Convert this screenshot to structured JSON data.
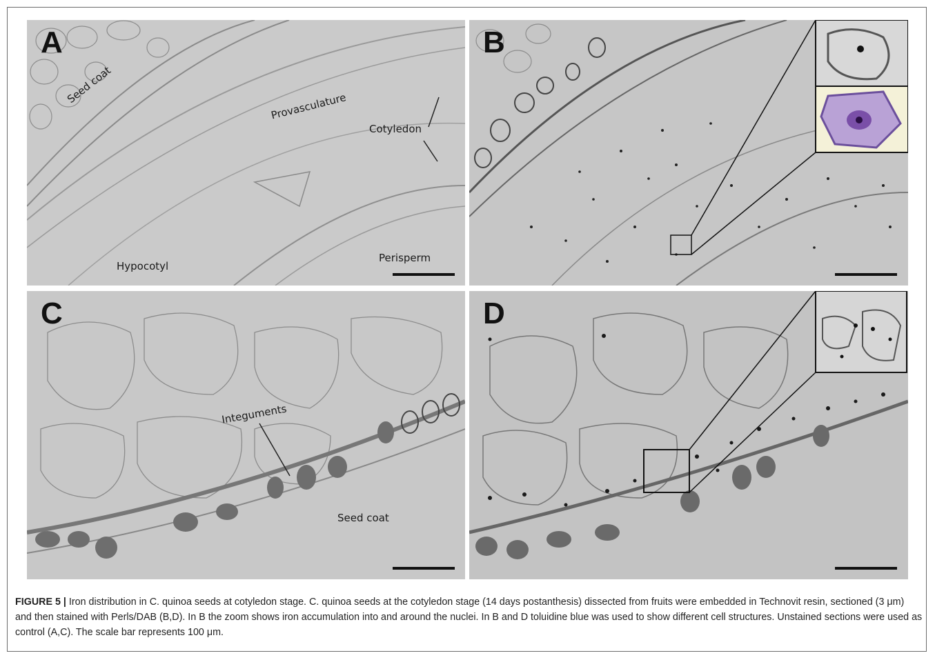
{
  "panels": {
    "A": {
      "letter": "A",
      "labels": {
        "seed_coat": "Seed coat",
        "provasculature": "Provasculature",
        "cotyledon": "Cotyledon",
        "hypocotyl": "Hypocotyl",
        "perisperm": "Perisperm"
      }
    },
    "B": {
      "letter": "B"
    },
    "C": {
      "letter": "C",
      "labels": {
        "integuments": "Integuments",
        "seed_coat": "Seed coat"
      }
    },
    "D": {
      "letter": "D"
    }
  },
  "caption": {
    "figure_label": "FIGURE 5 |",
    "text": " Iron distribution in C. quinoa seeds at cotyledon stage. C. quinoa seeds at the cotyledon stage (14 days postanthesis) dissected from fruits were embedded in Technovit resin, sectioned (3 μm) and then stained with Perls/DAB (B,D). In B the zoom shows iron accumulation into and around the nuclei. In B and D toluidine blue was used to show different cell structures. Unstained sections were used as control (A,C). The scale bar represents 100 μm."
  },
  "colors": {
    "unstained_background": "#c9c9c9",
    "stained_background": "#c4c4c4",
    "cell_wall": "#8a8a8a",
    "iron_deposit": "#1a1a1a",
    "toluidine_purple": "#9b7bbf"
  }
}
